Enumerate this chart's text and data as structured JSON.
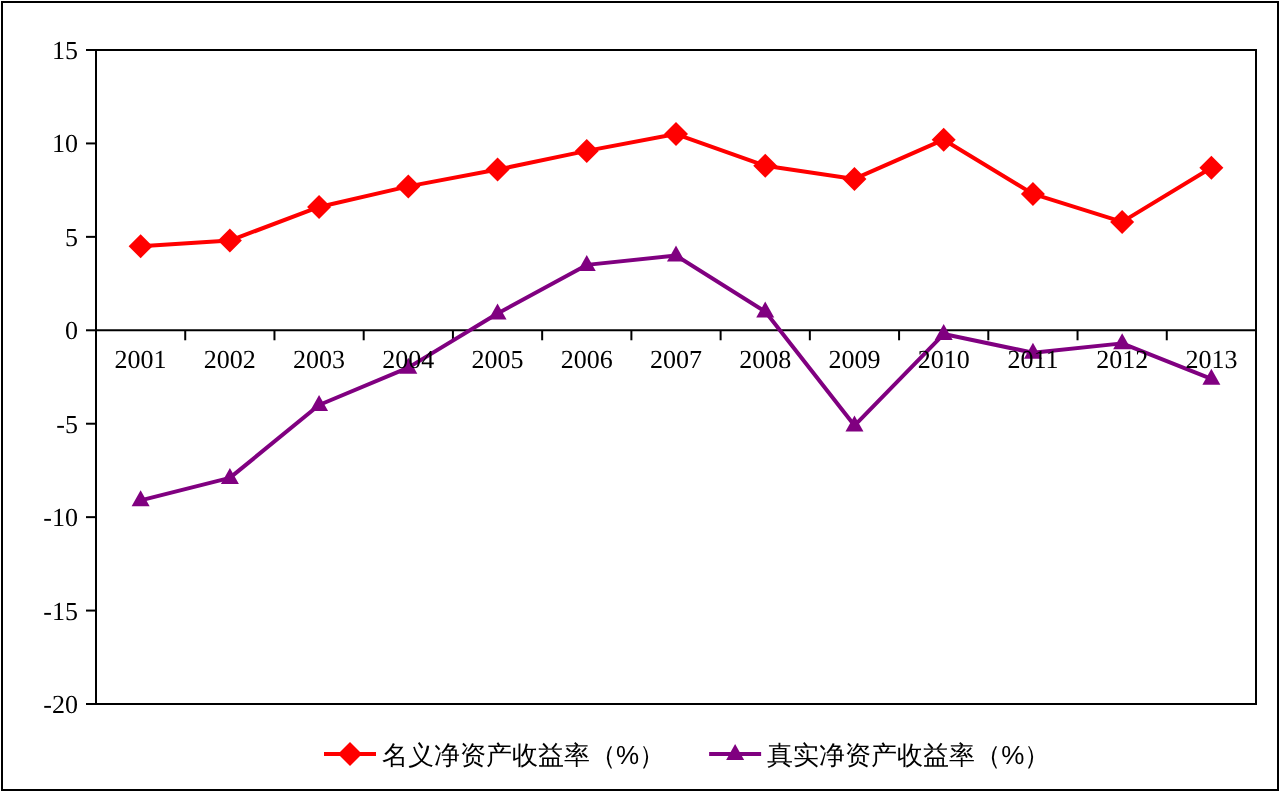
{
  "chart_data": {
    "type": "line",
    "categories": [
      "2001",
      "2002",
      "2003",
      "2004",
      "2005",
      "2006",
      "2007",
      "2008",
      "2009",
      "2010",
      "2011",
      "2012",
      "2013"
    ],
    "series": [
      {
        "name": "名义净资产收益率（%）",
        "color": "#ff0000",
        "marker": "diamond",
        "values": [
          4.5,
          4.8,
          6.6,
          7.7,
          8.6,
          9.6,
          10.5,
          8.8,
          8.1,
          10.2,
          7.3,
          5.8,
          8.7
        ]
      },
      {
        "name": "真实净资产收益率（%）",
        "color": "#800080",
        "marker": "triangle",
        "values": [
          -9.1,
          -7.9,
          -4.0,
          -2.0,
          0.9,
          3.5,
          4.0,
          1.0,
          -5.1,
          -0.2,
          -1.2,
          -0.7,
          -2.6
        ]
      }
    ],
    "ylim": [
      -20,
      15
    ],
    "yticks": [
      -20,
      -15,
      -10,
      -5,
      0,
      5,
      10,
      15
    ],
    "grid": false,
    "legend": "bottom"
  }
}
